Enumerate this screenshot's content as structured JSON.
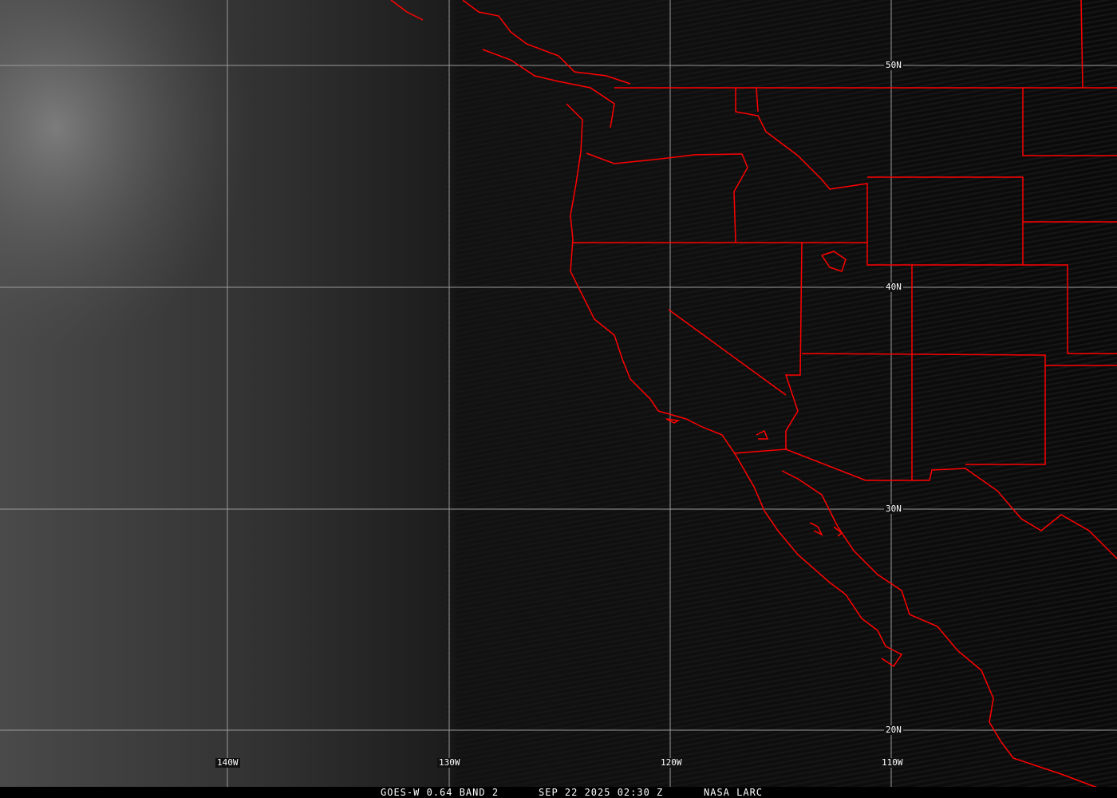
{
  "image": {
    "type": "satellite-imagery",
    "colors": {
      "borders": "#ff0000",
      "grid": "#9a9a9a",
      "background": "#0a0a0a"
    }
  },
  "grid": {
    "longitudes": [
      "140W",
      "130W",
      "120W",
      "110W"
    ],
    "latitudes": [
      "50N",
      "40N",
      "30N",
      "20N"
    ]
  },
  "caption": {
    "satellite": "GOES-W 0.64 BAND 2",
    "datetime": "SEP 22 2025 02:30 Z",
    "source": "NASA LARC"
  }
}
